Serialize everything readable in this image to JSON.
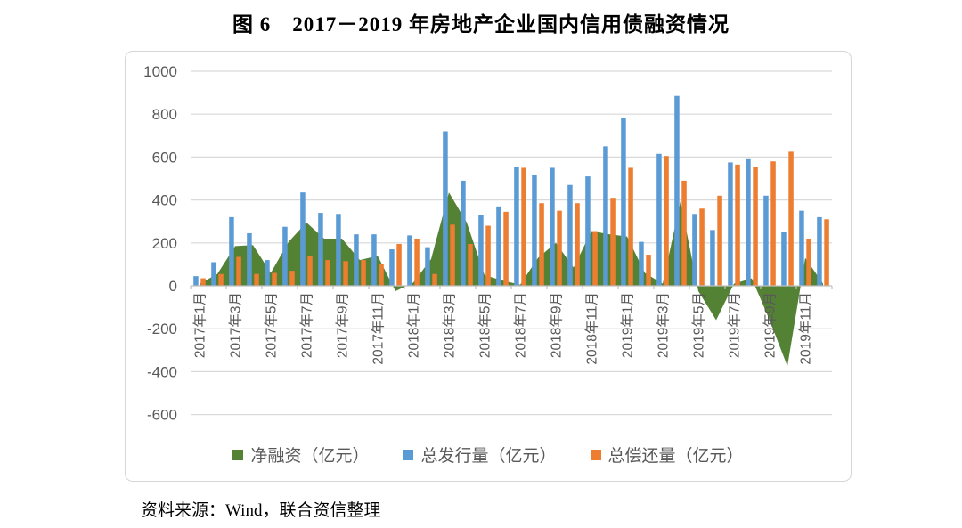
{
  "title": "图 6　2017－2019 年房地产企业国内信用债融资情况",
  "source": "资料来源：Wind，联合资信整理",
  "legend": [
    {
      "label": "净融资（亿元）",
      "color": "#548235"
    },
    {
      "label": "总发行量（亿元）",
      "color": "#5B9BD5"
    },
    {
      "label": "总偿还量（亿元）",
      "color": "#ED7D31"
    }
  ],
  "chart_data": {
    "type": "combo (area + grouped bars)",
    "categories": [
      "2017年1月",
      "2017年2月",
      "2017年3月",
      "2017年4月",
      "2017年5月",
      "2017年6月",
      "2017年7月",
      "2017年8月",
      "2017年9月",
      "2017年10月",
      "2017年11月",
      "2017年12月",
      "2018年1月",
      "2018年2月",
      "2018年3月",
      "2018年4月",
      "2018年5月",
      "2018年6月",
      "2018年7月",
      "2018年8月",
      "2018年9月",
      "2018年10月",
      "2018年11月",
      "2018年12月",
      "2019年1月",
      "2019年2月",
      "2019年3月",
      "2019年4月",
      "2019年5月",
      "2019年6月",
      "2019年7月",
      "2019年8月",
      "2019年9月",
      "2019年10月",
      "2019年11月",
      "2019年12月"
    ],
    "x_tick_labels_visible": [
      "2017年1月",
      "2017年3月",
      "2017年5月",
      "2017年7月",
      "2017年9月",
      "2017年11月",
      "2018年1月",
      "2018年3月",
      "2018年5月",
      "2018年7月",
      "2018年9月",
      "2018年11月",
      "2019年1月",
      "2019年3月",
      "2019年5月",
      "2019年7月",
      "2019年9月",
      "2019年11月"
    ],
    "series": [
      {
        "name": "净融资（亿元）",
        "type": "area",
        "color": "#548235",
        "values": [
          10,
          55,
          185,
          190,
          60,
          205,
          295,
          220,
          220,
          120,
          140,
          -25,
          15,
          125,
          435,
          295,
          50,
          25,
          5,
          130,
          200,
          85,
          255,
          240,
          230,
          60,
          10,
          395,
          -25,
          -160,
          10,
          35,
          -160,
          -375,
          130,
          10
        ]
      },
      {
        "name": "总发行量（亿元）",
        "type": "bar",
        "color": "#5B9BD5",
        "values": [
          45,
          110,
          320,
          245,
          120,
          275,
          435,
          340,
          335,
          240,
          240,
          170,
          235,
          180,
          720,
          490,
          330,
          370,
          555,
          515,
          550,
          470,
          510,
          650,
          780,
          205,
          615,
          885,
          335,
          260,
          575,
          590,
          420,
          250,
          350,
          320
        ]
      },
      {
        "name": "总偿还量（亿元）",
        "type": "bar",
        "color": "#ED7D31",
        "values": [
          35,
          55,
          135,
          55,
          60,
          70,
          140,
          120,
          115,
          120,
          100,
          195,
          220,
          55,
          285,
          195,
          280,
          345,
          550,
          385,
          350,
          385,
          255,
          410,
          550,
          145,
          605,
          490,
          360,
          420,
          565,
          555,
          580,
          625,
          220,
          310
        ]
      }
    ],
    "ylim": [
      -600,
      1000
    ],
    "ytick_interval": 200,
    "y_tick_labels": [
      "-600",
      "-400",
      "-200",
      "0",
      "200",
      "400",
      "600",
      "800",
      "1000"
    ],
    "xtick_label_every_n_months": 2,
    "grid": true,
    "legend_position": "bottom",
    "gridline_color": "#D9D9D9",
    "axis_line_color": "#BFBFBF",
    "axis_label_color": "#595959"
  }
}
